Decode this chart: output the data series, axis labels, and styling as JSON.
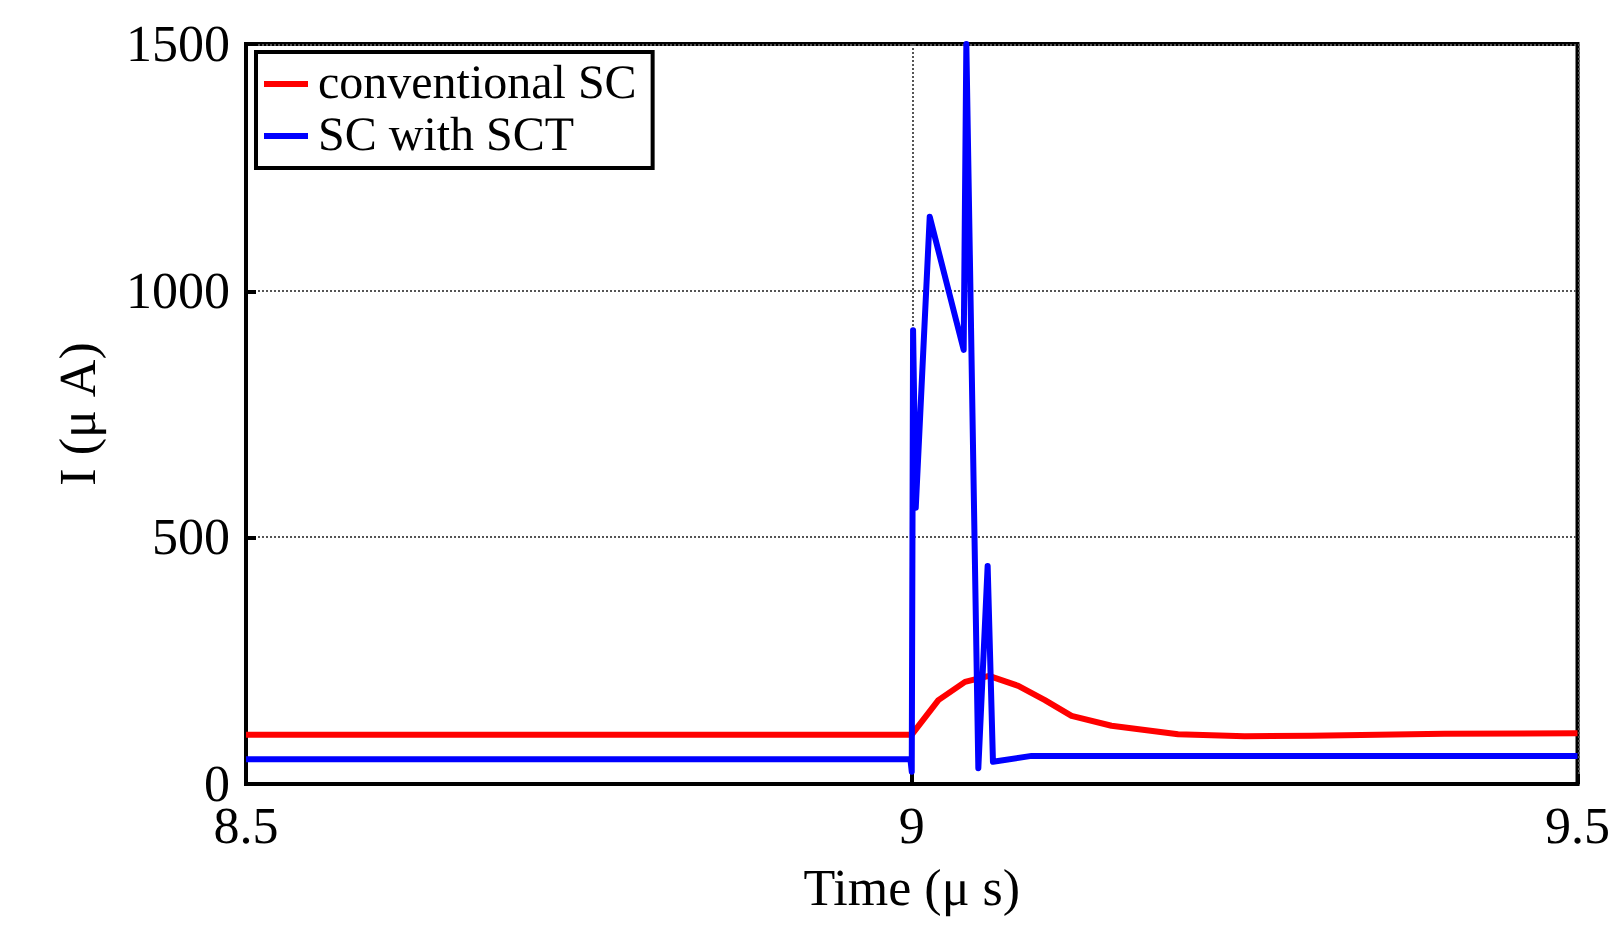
{
  "chart_data": {
    "type": "line",
    "xlabel": "Time (μ s)",
    "ylabel": "I (μ A)",
    "xlim": [
      8.5,
      9.5
    ],
    "xticks": [
      8.5,
      9,
      9.5
    ],
    "ylim": [
      0,
      1500
    ],
    "yticks": [
      0,
      500,
      1000,
      1500
    ],
    "grid": true,
    "legend": "top left",
    "marker": "none",
    "line_style": "solid",
    "series": [
      {
        "name": "conventional SC",
        "color": "#ff0000",
        "x": [
          8.5,
          9.0,
          9.02,
          9.04,
          9.058,
          9.08,
          9.1,
          9.12,
          9.15,
          9.2,
          9.25,
          9.3,
          9.4,
          9.5
        ],
        "values": [
          100,
          100,
          170,
          207,
          219,
          199,
          170,
          138,
          118,
          101,
          97,
          98,
          102,
          103
        ]
      },
      {
        "name": "SC with SCT",
        "color": "#0000ff",
        "x": [
          8.5,
          8.999,
          9.0,
          9.001,
          9.003,
          9.0135,
          9.039,
          9.041,
          9.042,
          9.05,
          9.057,
          9.061,
          9.09,
          9.5
        ],
        "values": [
          50,
          50,
          25,
          920,
          560,
          1150,
          880,
          1500,
          1500,
          32,
          442,
          45,
          57,
          57
        ]
      }
    ]
  }
}
